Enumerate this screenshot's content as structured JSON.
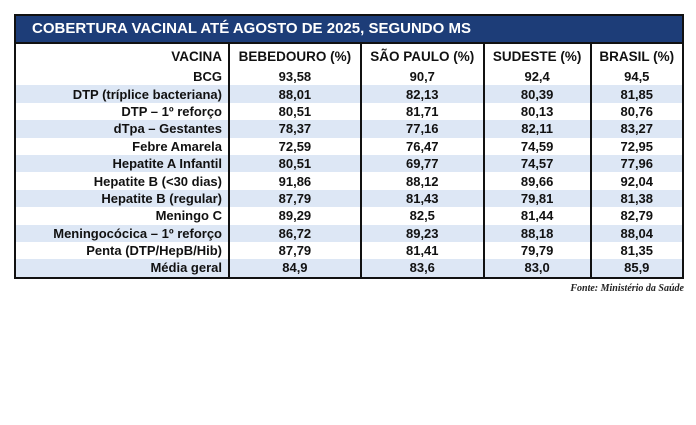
{
  "title": "COBERTURA VACINAL ATÉ AGOSTO DE 2025, SEGUNDO MS",
  "table": {
    "header": [
      "VACINA",
      "BEBEDOURO (%)",
      "SÃO PAULO (%)",
      "SUDESTE (%)",
      "BRASIL (%)"
    ],
    "rows": [
      [
        "BCG",
        "93,58",
        "90,7",
        "92,4",
        "94,5"
      ],
      [
        "DTP (tríplice bacteriana)",
        "88,01",
        "82,13",
        "80,39",
        "81,85"
      ],
      [
        "DTP – 1º reforço",
        "80,51",
        "81,71",
        "80,13",
        "80,76"
      ],
      [
        "dTpa – Gestantes",
        "78,37",
        "77,16",
        "82,11",
        "83,27"
      ],
      [
        "Febre Amarela",
        "72,59",
        "76,47",
        "74,59",
        "72,95"
      ],
      [
        "Hepatite A Infantil",
        "80,51",
        "69,77",
        "74,57",
        "77,96"
      ],
      [
        "Hepatite B (<30 dias)",
        "91,86",
        "88,12",
        "89,66",
        "92,04"
      ],
      [
        "Hepatite B (regular)",
        "87,79",
        "81,43",
        "79,81",
        "81,38"
      ],
      [
        "Meningo C",
        "89,29",
        "82,5",
        "81,44",
        "82,79"
      ],
      [
        "Meningocócica – 1º reforço",
        "86,72",
        "89,23",
        "88,18",
        "88,04"
      ],
      [
        "Penta (DTP/HepB/Hib)",
        "87,79",
        "81,41",
        "79,79",
        "81,35"
      ],
      [
        "Média geral",
        "84,9",
        "83,6",
        "83,0",
        "85,9"
      ]
    ]
  },
  "source": "Fonte: Ministério da Saúde"
}
